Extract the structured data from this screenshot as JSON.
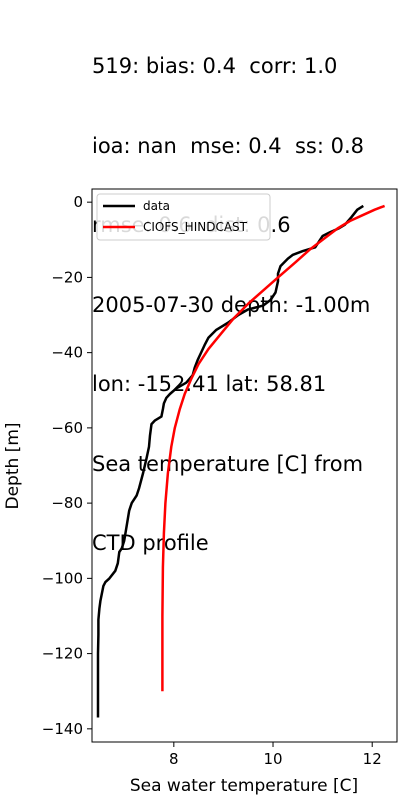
{
  "header": {
    "lines": [
      "519: bias: 0.4  corr: 1.0",
      "ioa: nan  mse: 0.4  ss: 0.8",
      "rmse: 0.6  dist: 0.6",
      "2005-07-30 depth: -1.00m",
      "lon: -152.41 lat: 58.81",
      "Sea temperature [C] from",
      "CTD profile"
    ]
  },
  "chart_data": {
    "type": "line",
    "xlabel": "Sea water temperature [C]",
    "ylabel": "Depth [m]",
    "xlim": [
      6.35,
      12.5
    ],
    "ylim": [
      -143.5,
      3.5
    ],
    "xticks": [
      8,
      10,
      12
    ],
    "yticks": [
      0,
      -20,
      -40,
      -60,
      -80,
      -100,
      -120,
      -140
    ],
    "legend_position": "top-left",
    "grid": false,
    "series": [
      {
        "name": "data",
        "color": "#000000",
        "points": [
          [
            11.82,
            -1
          ],
          [
            11.7,
            -2
          ],
          [
            11.58,
            -4
          ],
          [
            11.45,
            -6
          ],
          [
            11.32,
            -7
          ],
          [
            11.15,
            -8
          ],
          [
            11.0,
            -9
          ],
          [
            10.95,
            -10
          ],
          [
            10.85,
            -12
          ],
          [
            10.6,
            -13
          ],
          [
            10.4,
            -14
          ],
          [
            10.3,
            -15
          ],
          [
            10.15,
            -17
          ],
          [
            10.1,
            -19
          ],
          [
            10.1,
            -21
          ],
          [
            10.05,
            -24
          ],
          [
            9.95,
            -26
          ],
          [
            9.8,
            -27.5
          ],
          [
            9.5,
            -28.5
          ],
          [
            9.3,
            -30
          ],
          [
            9.1,
            -32
          ],
          [
            8.85,
            -34
          ],
          [
            8.7,
            -36
          ],
          [
            8.62,
            -38
          ],
          [
            8.55,
            -40
          ],
          [
            8.48,
            -42
          ],
          [
            8.42,
            -44
          ],
          [
            8.38,
            -46
          ],
          [
            8.25,
            -48
          ],
          [
            8.05,
            -49.5
          ],
          [
            7.92,
            -51
          ],
          [
            7.85,
            -52
          ],
          [
            7.8,
            -53.5
          ],
          [
            7.78,
            -55
          ],
          [
            7.75,
            -57
          ],
          [
            7.62,
            -58
          ],
          [
            7.55,
            -59
          ],
          [
            7.52,
            -62
          ],
          [
            7.5,
            -65
          ],
          [
            7.45,
            -68
          ],
          [
            7.38,
            -72
          ],
          [
            7.3,
            -76
          ],
          [
            7.25,
            -78
          ],
          [
            7.15,
            -80
          ],
          [
            7.1,
            -82
          ],
          [
            7.05,
            -86
          ],
          [
            7.0,
            -90
          ],
          [
            6.95,
            -92
          ],
          [
            6.9,
            -93
          ],
          [
            6.87,
            -96
          ],
          [
            6.82,
            -98
          ],
          [
            6.7,
            -100
          ],
          [
            6.62,
            -101
          ],
          [
            6.58,
            -102
          ],
          [
            6.55,
            -104
          ],
          [
            6.52,
            -106
          ],
          [
            6.5,
            -108
          ],
          [
            6.48,
            -111
          ],
          [
            6.48,
            -115
          ],
          [
            6.47,
            -120
          ],
          [
            6.47,
            -125
          ],
          [
            6.47,
            -130
          ],
          [
            6.47,
            -134
          ],
          [
            6.47,
            -137
          ]
        ]
      },
      {
        "name": "CIOFS_HINDCAST",
        "color": "#ff0000",
        "points": [
          [
            12.25,
            -1
          ],
          [
            12.05,
            -2
          ],
          [
            11.8,
            -3.5
          ],
          [
            11.55,
            -5
          ],
          [
            11.3,
            -7
          ],
          [
            11.05,
            -9.5
          ],
          [
            10.75,
            -12.5
          ],
          [
            10.45,
            -16
          ],
          [
            10.1,
            -20
          ],
          [
            9.8,
            -23.5
          ],
          [
            9.5,
            -27
          ],
          [
            9.2,
            -31
          ],
          [
            8.95,
            -35
          ],
          [
            8.7,
            -39
          ],
          [
            8.5,
            -43
          ],
          [
            8.35,
            -47
          ],
          [
            8.22,
            -51
          ],
          [
            8.12,
            -55
          ],
          [
            8.02,
            -60
          ],
          [
            7.95,
            -65
          ],
          [
            7.88,
            -72
          ],
          [
            7.83,
            -80
          ],
          [
            7.8,
            -88
          ],
          [
            7.78,
            -97
          ],
          [
            7.77,
            -110
          ],
          [
            7.77,
            -120
          ],
          [
            7.77,
            -130
          ]
        ]
      }
    ]
  }
}
